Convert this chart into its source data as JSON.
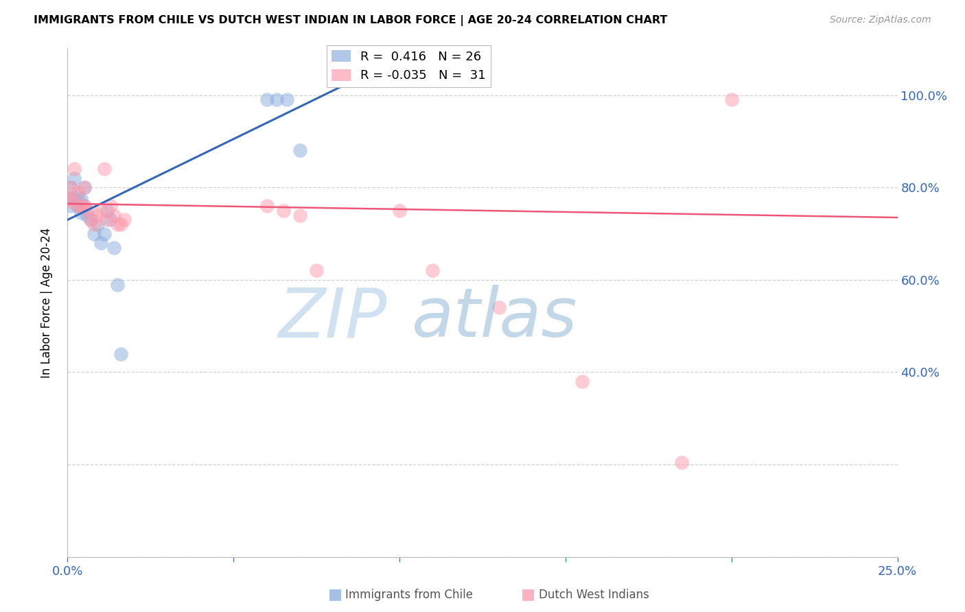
{
  "title": "IMMIGRANTS FROM CHILE VS DUTCH WEST INDIAN IN LABOR FORCE | AGE 20-24 CORRELATION CHART",
  "source": "Source: ZipAtlas.com",
  "ylabel": "In Labor Force | Age 20-24",
  "xlim": [
    0.0,
    0.25
  ],
  "ylim": [
    0.0,
    1.1
  ],
  "blue_R": 0.416,
  "blue_N": 26,
  "pink_R": -0.035,
  "pink_N": 31,
  "blue_color": "#88AADD",
  "pink_color": "#FF99AA",
  "blue_line_color": "#3366BB",
  "pink_line_color": "#EE5577",
  "blue_scatter_x": [
    0.0,
    0.001,
    0.001,
    0.002,
    0.002,
    0.003,
    0.003,
    0.004,
    0.004,
    0.005,
    0.005,
    0.006,
    0.007,
    0.008,
    0.009,
    0.01,
    0.011,
    0.012,
    0.013,
    0.014,
    0.015,
    0.016,
    0.06,
    0.063,
    0.066,
    0.07
  ],
  "blue_scatter_y": [
    0.775,
    0.8,
    0.76,
    0.82,
    0.775,
    0.76,
    0.78,
    0.745,
    0.775,
    0.8,
    0.76,
    0.74,
    0.73,
    0.7,
    0.72,
    0.68,
    0.7,
    0.75,
    0.73,
    0.67,
    0.59,
    0.44,
    0.99,
    0.99,
    0.99,
    0.88
  ],
  "pink_scatter_x": [
    0.0,
    0.001,
    0.001,
    0.002,
    0.003,
    0.003,
    0.004,
    0.005,
    0.005,
    0.006,
    0.007,
    0.008,
    0.009,
    0.01,
    0.011,
    0.012,
    0.013,
    0.014,
    0.015,
    0.016,
    0.017,
    0.06,
    0.065,
    0.07,
    0.075,
    0.1,
    0.11,
    0.13,
    0.155,
    0.185,
    0.2
  ],
  "pink_scatter_y": [
    0.775,
    0.8,
    0.77,
    0.84,
    0.76,
    0.79,
    0.76,
    0.8,
    0.76,
    0.75,
    0.73,
    0.72,
    0.74,
    0.75,
    0.84,
    0.73,
    0.76,
    0.74,
    0.72,
    0.72,
    0.73,
    0.76,
    0.75,
    0.74,
    0.62,
    0.75,
    0.62,
    0.54,
    0.38,
    0.205,
    0.99
  ]
}
